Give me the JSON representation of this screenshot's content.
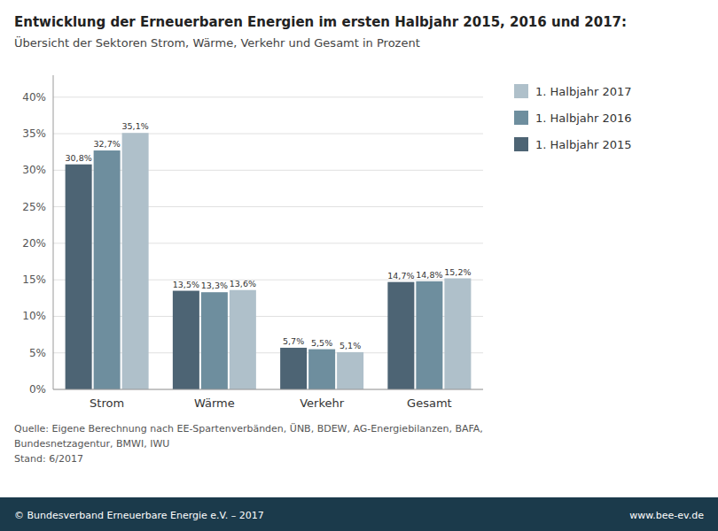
{
  "chart_data": {
    "type": "bar",
    "title": "Entwicklung der Erneuerbaren Energien im ersten Halbjahr 2015, 2016 und 2017:",
    "subtitle": "Übersicht der Sektoren Strom, Wärme, Verkehr und Gesamt in Prozent",
    "categories": [
      "Strom",
      "Wärme",
      "Verkehr",
      "Gesamt"
    ],
    "series": [
      {
        "name": "1. Halbjahr 2015",
        "color": "#4d6474",
        "values": [
          30.8,
          13.5,
          5.7,
          14.7
        ],
        "value_labels": [
          "30,8%",
          "13,5%",
          "5,7%",
          "14,7%"
        ]
      },
      {
        "name": "1. Halbjahr 2016",
        "color": "#6e8e9e",
        "values": [
          32.7,
          13.3,
          5.5,
          14.8
        ],
        "value_labels": [
          "32,7%",
          "13,3%",
          "5,5%",
          "14,8%"
        ]
      },
      {
        "name": "1. Halbjahr 2017",
        "color": "#afc0ca",
        "values": [
          35.1,
          13.6,
          5.1,
          15.2
        ],
        "value_labels": [
          "35,1%",
          "13,6%",
          "5,1%",
          "15,2%"
        ]
      }
    ],
    "ylim": [
      0,
      43
    ],
    "yticks": [
      {
        "value": 0,
        "label": "0%"
      },
      {
        "value": 5,
        "label": "5%"
      },
      {
        "value": 10,
        "label": "10%"
      },
      {
        "value": 15,
        "label": "15%"
      },
      {
        "value": 20,
        "label": "20%"
      },
      {
        "value": 25,
        "label": "25%"
      },
      {
        "value": 30,
        "label": "30%"
      },
      {
        "value": 35,
        "label": "35%"
      },
      {
        "value": 40,
        "label": "40%"
      }
    ],
    "grid": true,
    "legend": "right",
    "data_labels": true,
    "annotations": [
      "Quelle: Eigene Berechnung nach EE-Spartenverbänden, ÜNB, BDEW, AG-Energiebilanzen, BAFA,",
      "Bundesnetzagentur, BMWI, IWU",
      "Stand: 6/2017",
      "© Bundesverband Erneuerbare Energie e.V. – 2017",
      "www.bee-ev.de"
    ]
  }
}
